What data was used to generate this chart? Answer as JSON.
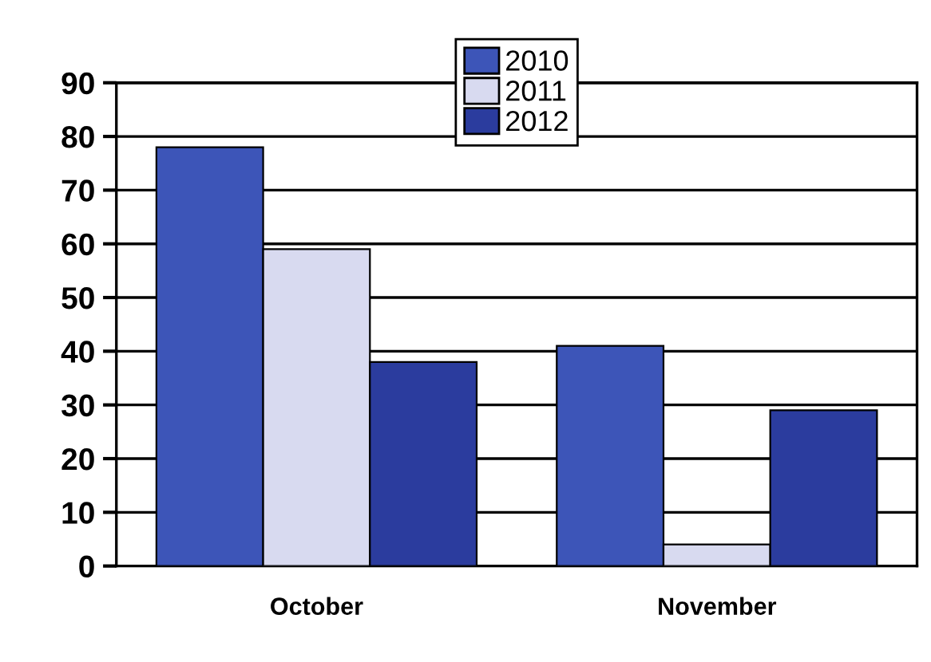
{
  "chart_data": {
    "type": "bar",
    "categories": [
      "October",
      "November"
    ],
    "series": [
      {
        "name": "2010",
        "color": "#3d55b8",
        "values": [
          78,
          41
        ]
      },
      {
        "name": "2011",
        "color": "#d8daf0",
        "values": [
          59,
          4
        ]
      },
      {
        "name": "2012",
        "color": "#2b3c9e",
        "values": [
          38,
          29
        ]
      }
    ],
    "ylim": [
      0,
      90
    ],
    "yticks": [
      0,
      10,
      20,
      30,
      40,
      50,
      60,
      70,
      80,
      90
    ],
    "grid": "y",
    "legend": "top"
  }
}
